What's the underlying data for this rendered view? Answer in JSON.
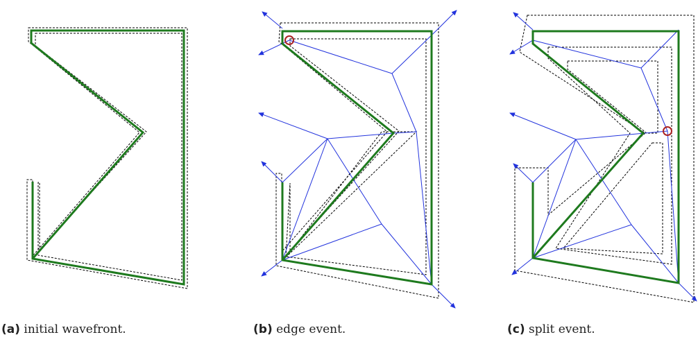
{
  "captions": {
    "a": {
      "tag": "(a)",
      "text": "initial wavefront."
    },
    "b": {
      "tag": "(b)",
      "text": "edge event."
    },
    "c": {
      "tag": "(c)",
      "text": "split event."
    }
  },
  "colors": {
    "wavefront": "#1e7a1e",
    "offset": "#000000",
    "skeleton": "#2233dd",
    "event_marker": "#aa2222"
  }
}
